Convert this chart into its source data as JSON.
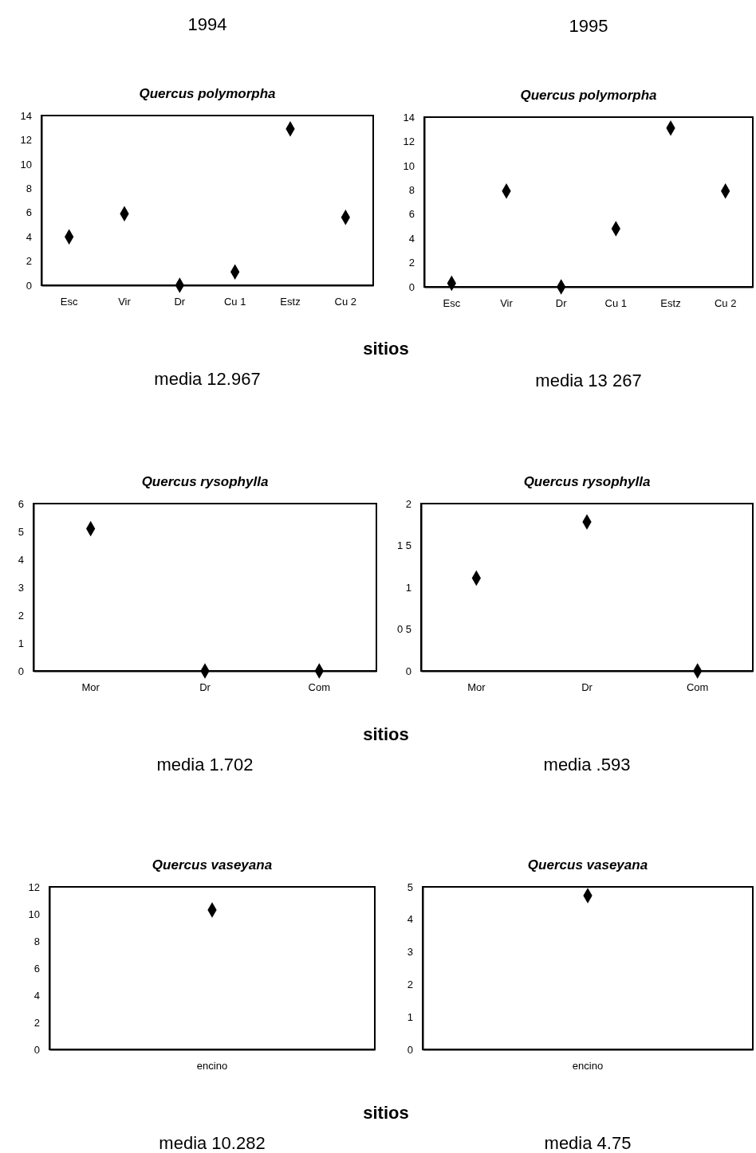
{
  "chart_data": [
    {
      "type": "scatter",
      "title": "Quercus polymorpha",
      "annotations": [
        "1994",
        "media 12.967"
      ],
      "xlabel": "sitios",
      "categories": [
        "Esc",
        "Vir",
        "Dr",
        "Cu 1",
        "Estz",
        "Cu 2"
      ],
      "values": [
        4.0,
        5.9,
        0,
        1.1,
        12.9,
        5.6
      ],
      "color": "#000000",
      "marker": "diamond",
      "ylim": [
        0,
        14
      ],
      "yticks": [
        0,
        2,
        4,
        6,
        8,
        10,
        12,
        14
      ]
    },
    {
      "type": "scatter",
      "title": "Quercus polymorpha",
      "annotations": [
        "1995",
        "media 13 267"
      ],
      "categories": [
        "Esc",
        "Vir",
        "Dr",
        "Cu 1",
        "Estz",
        "Cu 2"
      ],
      "values": [
        0.3,
        7.9,
        0,
        4.8,
        13.1,
        7.9
      ],
      "color": "#000000",
      "marker": "diamond",
      "ylim": [
        0,
        14
      ],
      "yticks": [
        0,
        2,
        4,
        6,
        8,
        10,
        12,
        14
      ]
    },
    {
      "type": "scatter",
      "title": "Quercus rysophylla",
      "annotations": [
        "media 1.702"
      ],
      "xlabel": "sitios",
      "categories": [
        "Mor",
        "Dr",
        "Com"
      ],
      "values": [
        5.1,
        0,
        0
      ],
      "color": "#000000",
      "marker": "diamond",
      "ylim": [
        0,
        6
      ],
      "yticks": [
        0,
        1,
        2,
        3,
        4,
        5,
        6
      ]
    },
    {
      "type": "scatter",
      "title": "Quercus rysophylla",
      "annotations": [
        "media .593"
      ],
      "categories": [
        "Mor",
        "Dr",
        "Com"
      ],
      "values": [
        1.11,
        1.78,
        0
      ],
      "color": "#000000",
      "marker": "diamond",
      "ylim": [
        0,
        2
      ],
      "yticks": [
        0,
        {
          "value": 0.5,
          "label": "0 5"
        },
        1,
        {
          "value": 1.5,
          "label": "1 5"
        },
        2
      ]
    },
    {
      "type": "scatter",
      "title": "Quercus vaseyana",
      "annotations": [
        "media 10.282"
      ],
      "xlabel": "sitios",
      "categories": [
        "encino"
      ],
      "values": [
        10.3
      ],
      "color": "#000000",
      "marker": "diamond",
      "ylim": [
        0,
        12
      ],
      "yticks": [
        0,
        2,
        4,
        6,
        8,
        10,
        12
      ]
    },
    {
      "type": "scatter",
      "title": "Quercus vaseyana",
      "annotations": [
        "media 4.75"
      ],
      "categories": [
        "encino"
      ],
      "values": [
        4.73
      ],
      "color": "#000000",
      "marker": "diamond",
      "ylim": [
        0,
        5
      ],
      "yticks": [
        0,
        1,
        2,
        3,
        4,
        5
      ]
    }
  ]
}
